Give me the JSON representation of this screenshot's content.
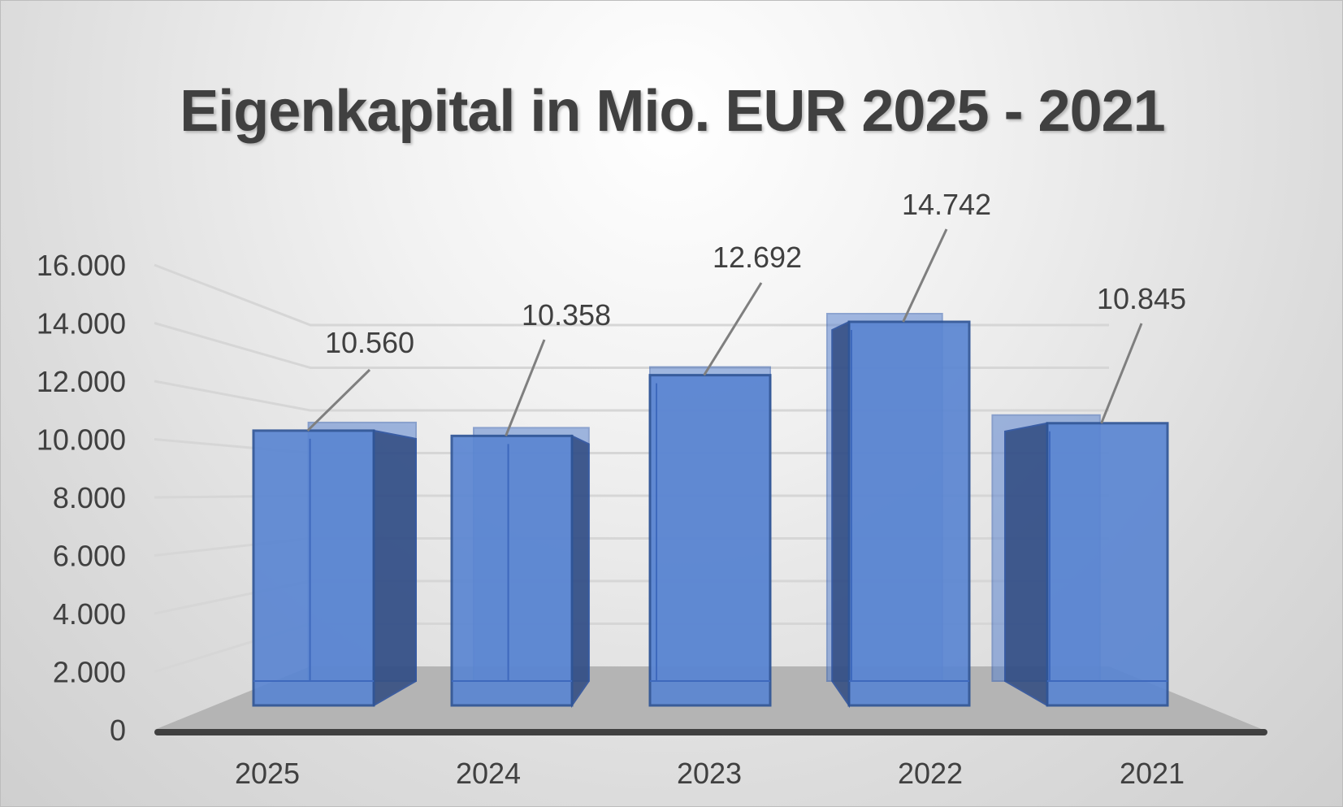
{
  "chart_data": {
    "type": "bar",
    "title": "Eigenkapital in Mio. EUR 2025 - 2021",
    "categories": [
      "2025",
      "2024",
      "2023",
      "2022",
      "2021"
    ],
    "values": [
      10560,
      10358,
      12692,
      14742,
      10845
    ],
    "data_labels": [
      "10.560",
      "10.358",
      "12.692",
      "14.742",
      "10.845"
    ],
    "xlabel": "",
    "ylabel": "",
    "ylim": [
      0,
      16000
    ],
    "yticks": [
      0,
      2000,
      4000,
      6000,
      8000,
      10000,
      12000,
      14000,
      16000
    ],
    "ytick_labels": [
      "0",
      "2.000",
      "4.000",
      "6.000",
      "8.000",
      "10.000",
      "12.000",
      "14.000",
      "16.000"
    ],
    "grid": true,
    "legend": "none",
    "style": "3d-column",
    "bar_color": "#4472C4"
  }
}
